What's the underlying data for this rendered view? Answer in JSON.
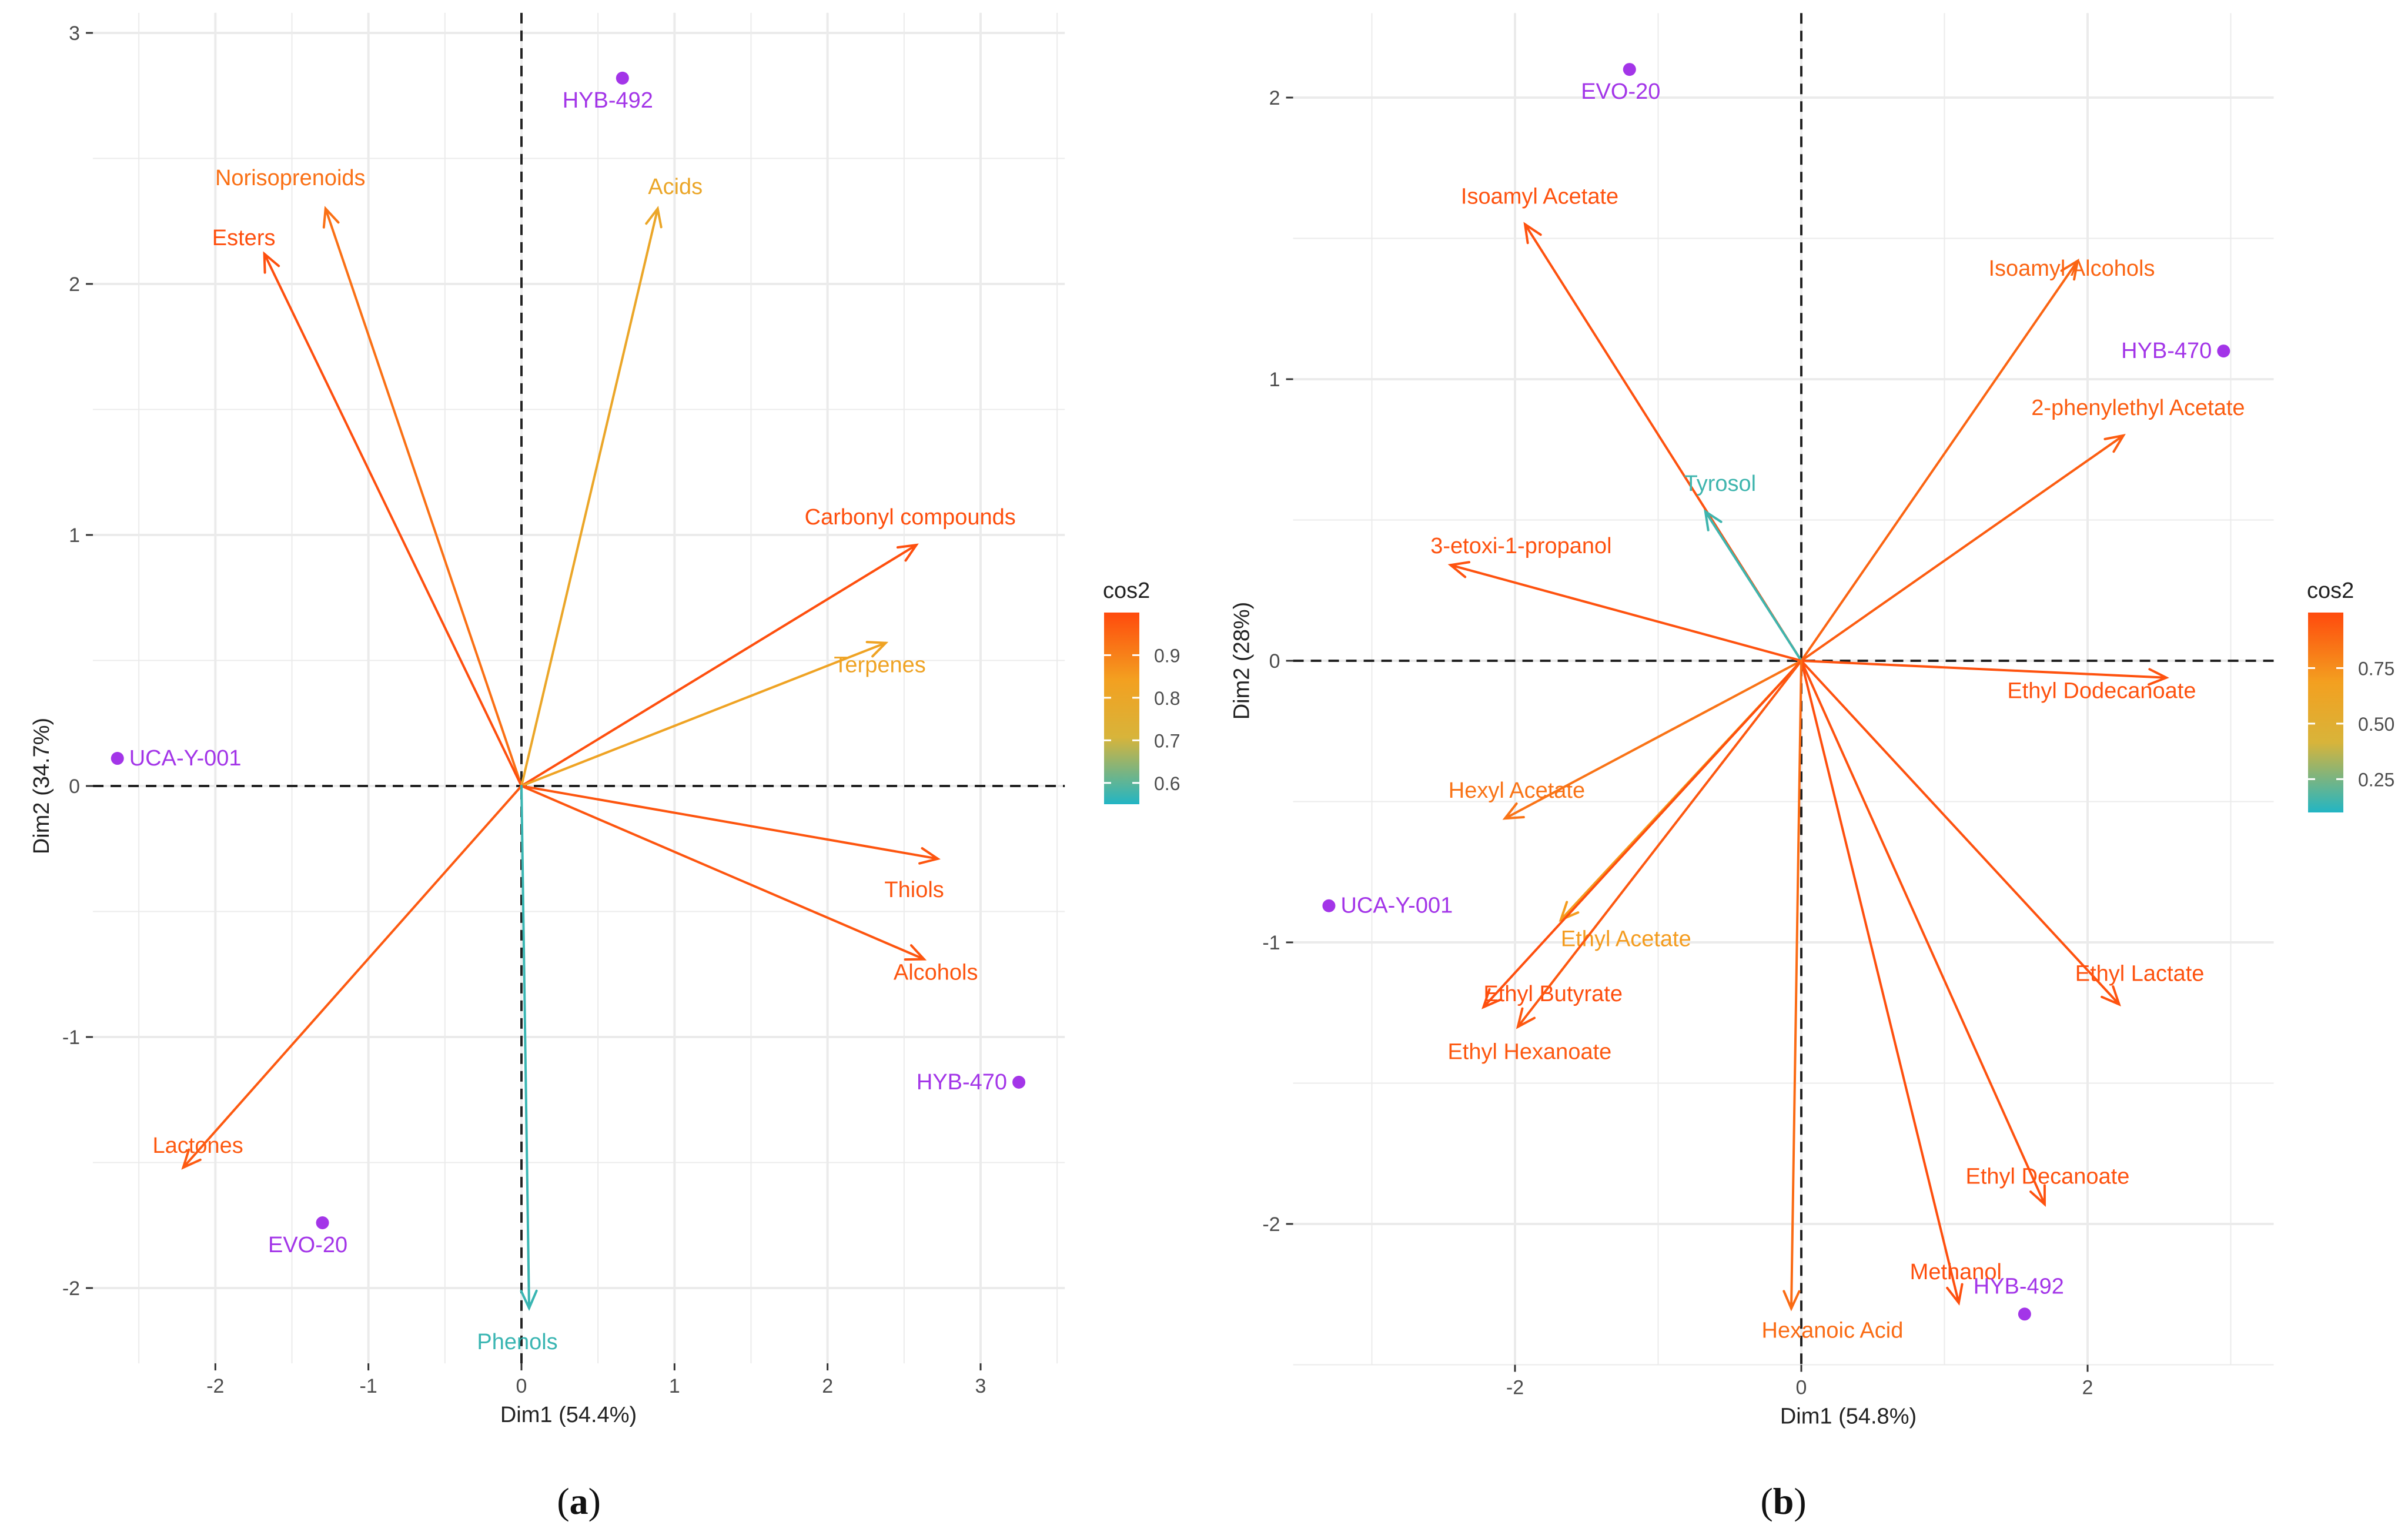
{
  "colors": {
    "individual": "#a335e8",
    "grid": "#ebebeb",
    "axis_text": "#4d4d4d",
    "cos2_gradient": [
      "#22b5c4",
      "#d8b43a",
      "#f3a020",
      "#ff4a0d"
    ]
  },
  "chart_data": [
    {
      "type": "scatter",
      "subtype": "pca-biplot",
      "caption": "a",
      "xlabel": "Dim1 (54.4%)",
      "ylabel": "Dim2 (34.7%)",
      "xlim": [
        -2.8,
        3.55
      ],
      "ylim": [
        -2.3,
        3.08
      ],
      "xticks": [
        -2,
        -1,
        0,
        1,
        2,
        3
      ],
      "yticks": [
        -2,
        -1,
        0,
        1,
        2,
        3
      ],
      "grid": true,
      "legend": {
        "title": "cos2",
        "position": "right",
        "range": [
          0.55,
          1.0
        ],
        "ticks": [
          {
            "value": 0.6,
            "label": "0.6"
          },
          {
            "value": 0.7,
            "label": "0.7"
          },
          {
            "value": 0.8,
            "label": "0.8"
          },
          {
            "value": 0.9,
            "label": "0.9"
          }
        ]
      },
      "variables": [
        {
          "name": "Norisoprenoids",
          "x": -1.28,
          "y": 2.3,
          "cos2": 0.93
        },
        {
          "name": "Esters",
          "x": -1.68,
          "y": 2.12,
          "cos2": 0.99
        },
        {
          "name": "Acids",
          "x": 0.89,
          "y": 2.3,
          "cos2": 0.8
        },
        {
          "name": "Carbonyl compounds",
          "x": 2.58,
          "y": 0.96,
          "cos2": 0.99
        },
        {
          "name": "Terpenes",
          "x": 2.38,
          "y": 0.57,
          "cos2": 0.82
        },
        {
          "name": "Thiols",
          "x": 2.72,
          "y": -0.29,
          "cos2": 0.98
        },
        {
          "name": "Alcohols",
          "x": 2.63,
          "y": -0.69,
          "cos2": 0.98
        },
        {
          "name": "Lactones",
          "x": -2.21,
          "y": -1.52,
          "cos2": 0.97
        },
        {
          "name": "Phenols",
          "x": 0.05,
          "y": -2.08,
          "cos2": 0.57
        }
      ],
      "individuals": [
        {
          "name": "HYB-492",
          "x": 0.66,
          "y": 2.82
        },
        {
          "name": "UCA-Y-001",
          "x": -2.64,
          "y": 0.11
        },
        {
          "name": "HYB-470",
          "x": 3.25,
          "y": -1.18
        },
        {
          "name": "EVO-20",
          "x": -1.3,
          "y": -1.74
        }
      ]
    },
    {
      "type": "scatter",
      "subtype": "pca-biplot",
      "caption": "b",
      "xlabel": "Dim1 (54.8%)",
      "ylabel": "Dim2 (28%)",
      "xlim": [
        -3.55,
        3.3
      ],
      "ylim": [
        -2.5,
        2.3
      ],
      "xticks": [
        -2,
        0,
        2
      ],
      "yticks": [
        -2,
        -1,
        0,
        1,
        2
      ],
      "grid": true,
      "legend": {
        "title": "cos2",
        "position": "right",
        "range": [
          0.1,
          1.0
        ],
        "ticks": [
          {
            "value": 0.25,
            "label": "0.25"
          },
          {
            "value": 0.5,
            "label": "0.50"
          },
          {
            "value": 0.75,
            "label": "0.75"
          }
        ]
      },
      "variables": [
        {
          "name": "Isoamyl Acetate",
          "x": -1.93,
          "y": 1.55,
          "cos2": 0.97
        },
        {
          "name": "Isoamyl Alcohols",
          "x": 1.93,
          "y": 1.42,
          "cos2": 0.9
        },
        {
          "name": "2-phenylethyl Acetate",
          "x": 2.25,
          "y": 0.8,
          "cos2": 0.93
        },
        {
          "name": "Tyrosol",
          "x": -0.67,
          "y": 0.53,
          "cos2": 0.15
        },
        {
          "name": "3-etoxi-1-propanol",
          "x": -2.45,
          "y": 0.34,
          "cos2": 0.97
        },
        {
          "name": "Ethyl Dodecanoate",
          "x": 2.55,
          "y": -0.06,
          "cos2": 0.97
        },
        {
          "name": "Hexyl Acetate",
          "x": -2.07,
          "y": -0.56,
          "cos2": 0.85
        },
        {
          "name": "Ethyl Acetate",
          "x": -1.68,
          "y": -0.92,
          "cos2": 0.7
        },
        {
          "name": "Ethyl Butyrate",
          "x": -2.22,
          "y": -1.23,
          "cos2": 0.98
        },
        {
          "name": "Ethyl Hexanoate",
          "x": -1.98,
          "y": -1.3,
          "cos2": 0.95
        },
        {
          "name": "Ethyl Lactate",
          "x": 2.22,
          "y": -1.22,
          "cos2": 0.97
        },
        {
          "name": "Ethyl Decanoate",
          "x": 1.7,
          "y": -1.93,
          "cos2": 0.97
        },
        {
          "name": "Methanol",
          "x": 1.1,
          "y": -2.28,
          "cos2": 0.98
        },
        {
          "name": "Hexanoic Acid",
          "x": -0.07,
          "y": -2.3,
          "cos2": 0.88
        }
      ],
      "individuals": [
        {
          "name": "EVO-20",
          "x": -1.2,
          "y": 2.1
        },
        {
          "name": "HYB-470",
          "x": 2.95,
          "y": 1.1
        },
        {
          "name": "UCA-Y-001",
          "x": -3.3,
          "y": -0.87
        },
        {
          "name": "HYB-492",
          "x": 1.56,
          "y": -2.32
        }
      ]
    }
  ]
}
